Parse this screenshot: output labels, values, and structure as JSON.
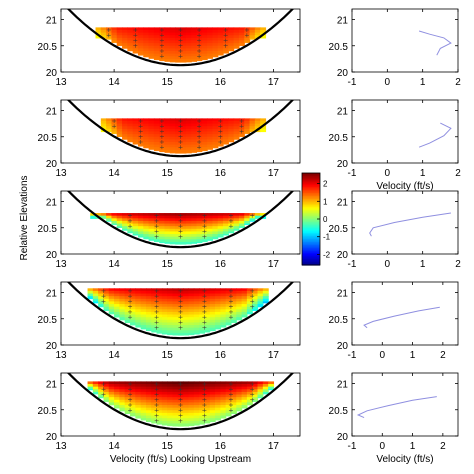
{
  "chart_data": {
    "type": "heatmap",
    "ylabel": "Relative Elevations",
    "left_xlabel": "Velocity (ft/s) Looking Upstream",
    "right_xlabel": "Velocity (ft/s)",
    "left_xlim": [
      13,
      17.5
    ],
    "left_xticks": [
      "13",
      "14",
      "15",
      "16",
      "17"
    ],
    "left_ylim": [
      20,
      21.2
    ],
    "left_yticks": [
      "20",
      "20.5",
      "21"
    ],
    "right_ylim": [
      20,
      21.2
    ],
    "right_yticks": [
      "20",
      "20.5",
      "21"
    ],
    "colorbar": {
      "min": -2.6,
      "max": 2.6,
      "ticks": [
        "2",
        "1",
        "0",
        "-1",
        "-2"
      ]
    },
    "panels": [
      {
        "channel": {
          "center": 15.25,
          "bottom": 20.13,
          "k": 0.24
        },
        "field_top": 20.85,
        "field_xmin": 13.65,
        "field_xmax": 16.85,
        "color_top": 1.8,
        "color_bottom": 1.3,
        "min_depth": 0.2,
        "verticals": [
          13.9,
          14.4,
          14.9,
          15.25,
          15.6,
          16.1,
          16.5
        ],
        "profile_xlim": [
          -1,
          2
        ],
        "profile_xticks": [
          "-1",
          "0",
          "1",
          "2"
        ],
        "profile": {
          "velocity": [
            0.9,
            1.2,
            1.6,
            1.8,
            1.5,
            1.4
          ],
          "elevation": [
            20.78,
            20.72,
            20.65,
            20.55,
            20.45,
            20.32
          ]
        }
      },
      {
        "channel": {
          "center": 15.25,
          "bottom": 20.13,
          "k": 0.24
        },
        "field_top": 20.85,
        "field_xmin": 13.75,
        "field_xmax": 16.85,
        "color_top": 1.8,
        "color_bottom": 1.3,
        "min_depth": 0.25,
        "verticals": [
          14.0,
          14.5,
          14.9,
          15.25,
          15.6,
          16.0,
          16.4
        ],
        "profile_xlim": [
          -1,
          2
        ],
        "profile_xticks": [
          "-1",
          "0",
          "1",
          "2"
        ],
        "profile": {
          "velocity": [
            1.5,
            1.8,
            1.6,
            1.2,
            0.9
          ],
          "elevation": [
            20.76,
            20.66,
            20.52,
            20.38,
            20.3
          ]
        }
      },
      {
        "channel": {
          "center": 15.25,
          "bottom": 20.13,
          "k": 0.24
        },
        "field_top": 20.78,
        "field_xmin": 13.55,
        "field_xmax": 16.8,
        "color_top": 2.2,
        "color_bottom": -0.4,
        "min_depth": 0.1,
        "verticals": [
          13.8,
          14.3,
          14.8,
          15.25,
          15.7,
          16.2,
          16.6
        ],
        "profile_xlim": [
          -1,
          2
        ],
        "profile_xticks": [
          "-1",
          "0",
          "1",
          "2"
        ],
        "profile": {
          "velocity": [
            1.8,
            1.0,
            0.2,
            -0.4,
            -0.5,
            -0.45
          ],
          "elevation": [
            20.78,
            20.7,
            20.6,
            20.5,
            20.4,
            20.34
          ]
        }
      },
      {
        "channel": {
          "center": 15.25,
          "bottom": 20.13,
          "k": 0.24
        },
        "field_top": 21.08,
        "field_xmin": 13.5,
        "field_xmax": 16.85,
        "color_top": 2.0,
        "color_bottom": -0.3,
        "min_depth": 0.1,
        "verticals": [
          13.8,
          14.3,
          14.8,
          15.25,
          15.7,
          16.2,
          16.6
        ],
        "profile_xlim": [
          -1,
          2.5
        ],
        "profile_xticks": [
          "-1",
          "0",
          "1",
          "2"
        ],
        "profile": {
          "velocity": [
            1.9,
            1.2,
            0.4,
            -0.3,
            -0.6,
            -0.5
          ],
          "elevation": [
            20.72,
            20.65,
            20.55,
            20.45,
            20.38,
            20.33
          ]
        }
      },
      {
        "channel": {
          "center": 15.25,
          "bottom": 20.13,
          "k": 0.24
        },
        "field_top": 21.04,
        "field_xmin": 13.5,
        "field_xmax": 17.0,
        "color_top": 2.5,
        "color_bottom": 0.0,
        "min_depth": 0.1,
        "verticals": [
          13.8,
          14.3,
          14.8,
          15.25,
          15.7,
          16.2,
          16.6
        ],
        "profile_xlim": [
          -1,
          2.5
        ],
        "profile_xticks": [
          "-1",
          "0",
          "1",
          "2"
        ],
        "profile": {
          "velocity": [
            1.8,
            1.0,
            0.2,
            -0.5,
            -0.8,
            -0.6
          ],
          "elevation": [
            20.75,
            20.68,
            20.58,
            20.48,
            20.4,
            20.35
          ]
        }
      }
    ]
  }
}
